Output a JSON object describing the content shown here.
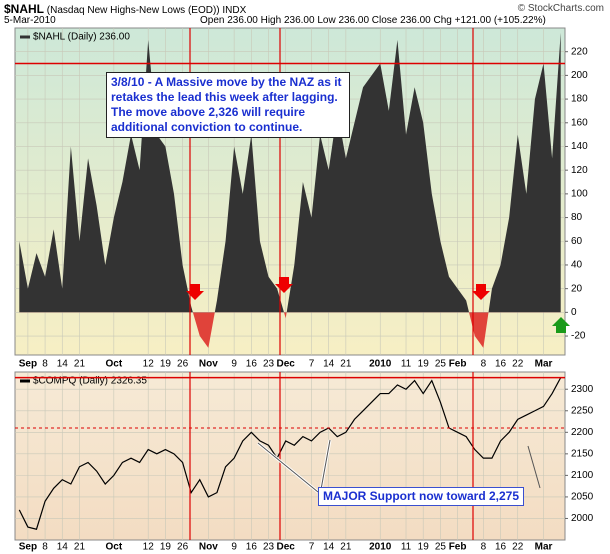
{
  "chart_data": [
    {
      "type": "area",
      "title": "$NAHL",
      "subtitle": "(Nasdaq New Highs-New Lows (EOD)) INDX",
      "date": "5-Mar-2010",
      "quote": "Open 236.00  High 236.00  Low 236.00  Close 236.00  Chg +121.00 (+105.22%)",
      "source": "© StockCharts.com",
      "annotation": "3/8/10 - A Massive move by the NAZ as it retakes the lead this week after lagging. The move above 2,326 will require additional conviction to continue.",
      "categories": [
        null,
        "Sep",
        null,
        "8",
        null,
        "14",
        null,
        "21",
        null,
        null,
        null,
        "Oct",
        null,
        null,
        null,
        "12",
        null,
        "19",
        null,
        "26",
        null,
        null,
        "Nov",
        null,
        null,
        "9",
        null,
        "16",
        null,
        "23",
        null,
        "Dec",
        null,
        null,
        "7",
        null,
        "14",
        null,
        "21",
        null,
        null,
        null,
        "2010",
        null,
        null,
        "11",
        null,
        "19",
        null,
        "25",
        null,
        "Feb",
        null,
        null,
        "8",
        null,
        "16",
        null,
        "22",
        null,
        null,
        "Mar",
        null,
        null
      ],
      "series": [
        {
          "name": "$NAHL (Daily) 236.00",
          "color": "#333333",
          "negative_color": "#e0433a",
          "values": [
            60,
            20,
            50,
            30,
            70,
            20,
            140,
            60,
            130,
            90,
            40,
            80,
            110,
            150,
            120,
            230,
            150,
            140,
            100,
            40,
            5,
            -20,
            -30,
            10,
            60,
            140,
            100,
            150,
            60,
            30,
            20,
            -5,
            40,
            110,
            80,
            150,
            120,
            170,
            130,
            160,
            190,
            200,
            210,
            170,
            230,
            150,
            190,
            160,
            100,
            60,
            30,
            20,
            10,
            -20,
            -30,
            20,
            40,
            80,
            150,
            100,
            180,
            210,
            130,
            236
          ]
        }
      ],
      "ylim": [
        -36,
        240
      ],
      "yticks": [
        -20,
        0,
        20,
        40,
        60,
        80,
        100,
        120,
        140,
        160,
        180,
        200,
        220
      ],
      "ref_lines": [
        210
      ],
      "grid": true
    },
    {
      "type": "line",
      "annotation": "MAJOR Support now toward 2,275",
      "categories": [
        null,
        "Sep",
        null,
        "8",
        null,
        "14",
        null,
        "21",
        null,
        null,
        null,
        "Oct",
        null,
        null,
        null,
        "12",
        null,
        "19",
        null,
        "26",
        null,
        null,
        "Nov",
        null,
        null,
        "9",
        null,
        "16",
        null,
        "23",
        null,
        "Dec",
        null,
        null,
        "7",
        null,
        "14",
        null,
        "21",
        null,
        null,
        null,
        "2010",
        null,
        null,
        "11",
        null,
        "19",
        null,
        "25",
        null,
        "Feb",
        null,
        null,
        "8",
        null,
        "16",
        null,
        "22",
        null,
        null,
        "Mar",
        null,
        null
      ],
      "series": [
        {
          "name": "$COMPQ (Daily) 2326.35",
          "color": "#000000",
          "values": [
            2020,
            1980,
            1975,
            2040,
            2070,
            2090,
            2080,
            2120,
            2130,
            2110,
            2080,
            2100,
            2130,
            2140,
            2130,
            2160,
            2150,
            2160,
            2150,
            2130,
            2060,
            2090,
            2050,
            2060,
            2120,
            2140,
            2180,
            2200,
            2180,
            2170,
            2140,
            2180,
            2170,
            2190,
            2180,
            2200,
            2210,
            2190,
            2200,
            2230,
            2250,
            2270,
            2290,
            2290,
            2310,
            2300,
            2320,
            2290,
            2320,
            2270,
            2210,
            2200,
            2190,
            2160,
            2140,
            2140,
            2180,
            2200,
            2230,
            2240,
            2250,
            2260,
            2290,
            2327
          ]
        }
      ],
      "ylim": [
        1950,
        2340
      ],
      "yticks": [
        2000,
        2050,
        2100,
        2150,
        2200,
        2250,
        2300
      ],
      "ref_lines": [
        2327
      ],
      "dashed_ref_lines": [
        2210
      ],
      "grid": true
    }
  ]
}
